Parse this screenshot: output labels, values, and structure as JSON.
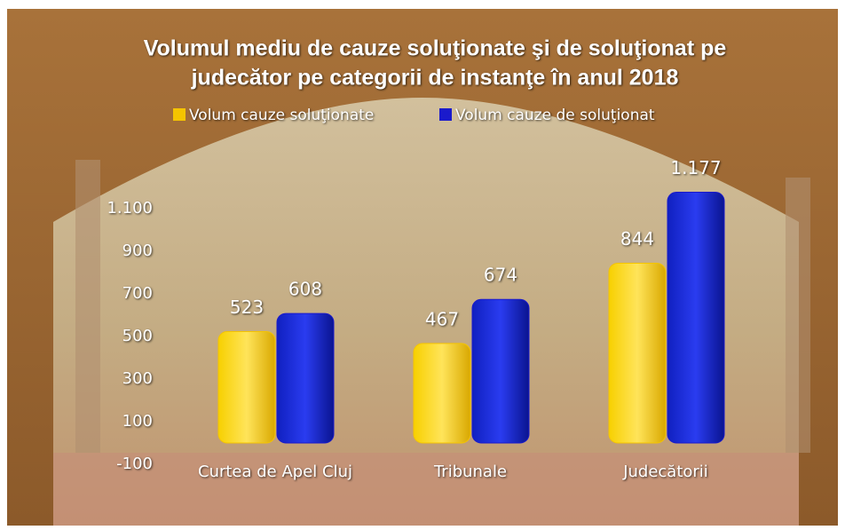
{
  "chart_data": {
    "type": "bar",
    "title": [
      "Volumul mediu de cauze soluţionate  şi de soluţionat  pe",
      "judecător pe categorii  de instanţe în anul 2018"
    ],
    "categories": [
      "Curtea de Apel Cluj",
      "Tribunale",
      "Judecătorii"
    ],
    "series": [
      {
        "name": "Volum cauze soluţionate",
        "color": "#f5c400",
        "values": [
          523,
          467,
          844
        ]
      },
      {
        "name": "Volum cauze de soluţionat",
        "color": "#1a1acc",
        "values": [
          608,
          674,
          1177
        ],
        "value_labels": [
          "608",
          "674",
          "1.177"
        ]
      }
    ],
    "ylim": [
      -100,
      1300
    ],
    "yticks": [
      -100,
      100,
      300,
      500,
      700,
      900,
      {
        "value": 1100,
        "label": "1.100"
      }
    ],
    "grid": false,
    "legend": "top"
  }
}
